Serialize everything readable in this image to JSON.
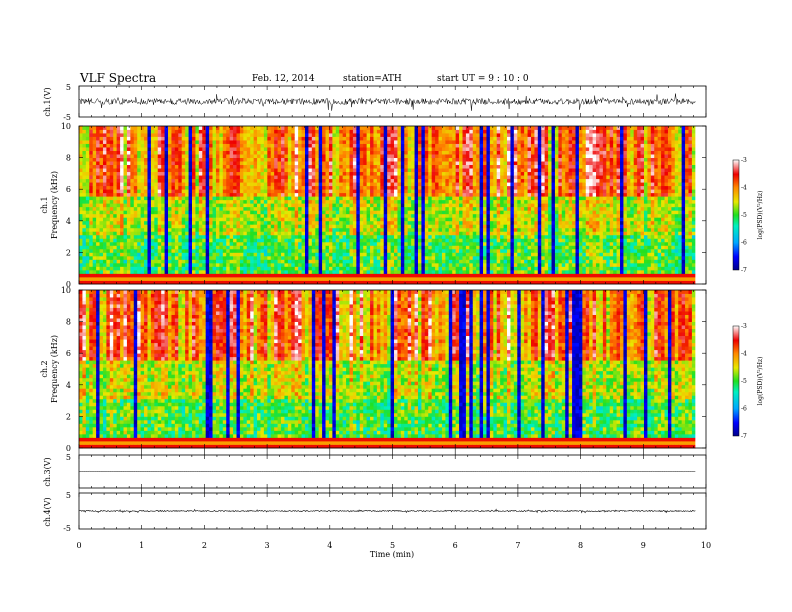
{
  "header": {
    "title": "VLF  Spectra",
    "date": "Feb. 12, 2014",
    "station": "station=ATH",
    "start_ut": "start  UT =   9  : 10 : 0"
  },
  "chart_data": [
    {
      "type": "line",
      "panel": "ch1-waveform",
      "ylabel": "ch.1(V)",
      "ylim": [
        -5,
        5
      ],
      "yticks": [
        "5",
        "-5"
      ],
      "xlim": [
        0,
        10
      ],
      "description_values": {
        "baseline": 0,
        "noise_amplitude_approx": 2.5
      }
    },
    {
      "type": "heatmap",
      "panel": "ch1-spectrogram",
      "ylabel": "ch.1\nFrequency (kHz)",
      "ylabel_lines": [
        "ch.1",
        "Frequency (kHz)"
      ],
      "ylim": [
        0,
        10
      ],
      "yticks": [
        "0",
        "2",
        "4",
        "6",
        "8",
        "10"
      ],
      "xlim": [
        0,
        9.83
      ],
      "colorbar": {
        "label": "log(PSD)(V²/Hz)",
        "range": [
          -7,
          -3
        ],
        "ticks": [
          "-3",
          "-4",
          "-5",
          "-6",
          "-7"
        ]
      }
    },
    {
      "type": "heatmap",
      "panel": "ch2-spectrogram",
      "ylabel_lines": [
        "ch.2",
        "Frequency (kHz)"
      ],
      "ylim": [
        0,
        10
      ],
      "yticks": [
        "0",
        "2",
        "4",
        "6",
        "8",
        "10"
      ],
      "xlim": [
        0,
        9.83
      ],
      "colorbar": {
        "label": "log(PSD)(V²/Hz)",
        "range": [
          -7,
          -3
        ],
        "ticks": [
          "-3",
          "-4",
          "-5",
          "-6",
          "-7"
        ]
      }
    },
    {
      "type": "line",
      "panel": "ch3-waveform",
      "ylabel": "ch.3(V)",
      "ylim": [
        -5,
        5
      ],
      "yticks": [
        "5",
        "-5"
      ],
      "description_values": {
        "baseline": 0,
        "noise_amplitude_approx": 0.1
      }
    },
    {
      "type": "line",
      "panel": "ch4-waveform",
      "ylabel": "ch.4(V)",
      "ylim": [
        -5,
        5
      ],
      "yticks": [
        "5",
        "-5"
      ],
      "description_values": {
        "baseline": 0,
        "noise_amplitude_approx": 0.4
      }
    }
  ],
  "xaxis": {
    "label": "Time  (min)",
    "range": [
      0,
      10
    ],
    "ticks": [
      "0",
      "1",
      "2",
      "3",
      "4",
      "5",
      "6",
      "7",
      "8",
      "9",
      "10"
    ],
    "data_end": 9.83
  }
}
